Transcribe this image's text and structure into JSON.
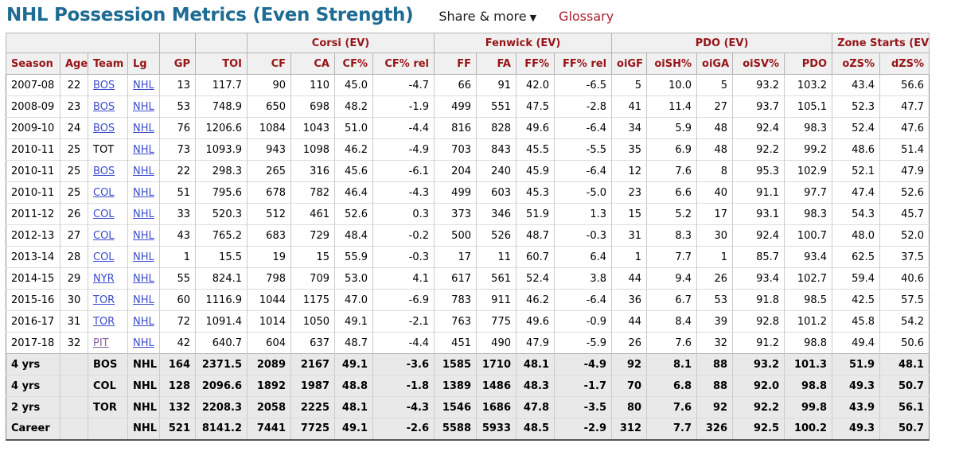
{
  "page": {
    "title": "NHL Possession Metrics (Even Strength)",
    "share_label": "Share & more",
    "share_caret": "▼",
    "glossary_label": "Glossary"
  },
  "colors": {
    "title": "#1e6b93",
    "header_text": "#971417",
    "glossary": "#ab1f2b",
    "link": "#3b4ccc",
    "link_visited": "#8a62a8",
    "header_bg": "#f0f0f0",
    "summary_bg": "#e9e9e9"
  },
  "table": {
    "group_headers": [
      {
        "label": "",
        "span": 4
      },
      {
        "label": "",
        "span": 1
      },
      {
        "label": "",
        "span": 1
      },
      {
        "label": "Corsi (EV)",
        "span": 4
      },
      {
        "label": "Fenwick (EV)",
        "span": 4
      },
      {
        "label": "PDO (EV)",
        "span": 5
      },
      {
        "label": "Zone Starts (EV)",
        "span": 2
      }
    ],
    "columns": [
      "Season",
      "Age",
      "Team",
      "Lg",
      "GP",
      "TOI",
      "CF",
      "CA",
      "CF%",
      "CF% rel",
      "FF",
      "FA",
      "FF%",
      "FF% rel",
      "oiGF",
      "oiSH%",
      "oiGA",
      "oiSV%",
      "PDO",
      "oZS%",
      "dZS%"
    ],
    "rows": [
      {
        "season": "2007-08",
        "age": "22",
        "team": "BOS",
        "team_style": "link",
        "lg": "NHL",
        "lg_style": "link",
        "summary": false,
        "stats": [
          "13",
          "117.7",
          "90",
          "110",
          "45.0",
          "-4.7",
          "66",
          "91",
          "42.0",
          "-6.5",
          "5",
          "10.0",
          "5",
          "93.2",
          "103.2",
          "43.4",
          "56.6"
        ]
      },
      {
        "season": "2008-09",
        "age": "23",
        "team": "BOS",
        "team_style": "link",
        "lg": "NHL",
        "lg_style": "link",
        "summary": false,
        "stats": [
          "53",
          "748.9",
          "650",
          "698",
          "48.2",
          "-1.9",
          "499",
          "551",
          "47.5",
          "-2.8",
          "41",
          "11.4",
          "27",
          "93.7",
          "105.1",
          "52.3",
          "47.7"
        ]
      },
      {
        "season": "2009-10",
        "age": "24",
        "team": "BOS",
        "team_style": "link",
        "lg": "NHL",
        "lg_style": "link",
        "summary": false,
        "stats": [
          "76",
          "1206.6",
          "1084",
          "1043",
          "51.0",
          "-4.4",
          "816",
          "828",
          "49.6",
          "-6.4",
          "34",
          "5.9",
          "48",
          "92.4",
          "98.3",
          "52.4",
          "47.6"
        ]
      },
      {
        "season": "2010-11",
        "age": "25",
        "team": "TOT",
        "team_style": "plain",
        "lg": "NHL",
        "lg_style": "link",
        "summary": false,
        "stats": [
          "73",
          "1093.9",
          "943",
          "1098",
          "46.2",
          "-4.9",
          "703",
          "843",
          "45.5",
          "-5.5",
          "35",
          "6.9",
          "48",
          "92.2",
          "99.2",
          "48.6",
          "51.4"
        ]
      },
      {
        "season": "2010-11",
        "age": "25",
        "team": "BOS",
        "team_style": "link",
        "lg": "NHL",
        "lg_style": "link",
        "summary": false,
        "stats": [
          "22",
          "298.3",
          "265",
          "316",
          "45.6",
          "-6.1",
          "204",
          "240",
          "45.9",
          "-6.4",
          "12",
          "7.6",
          "8",
          "95.3",
          "102.9",
          "52.1",
          "47.9"
        ]
      },
      {
        "season": "2010-11",
        "age": "25",
        "team": "COL",
        "team_style": "link",
        "lg": "NHL",
        "lg_style": "link",
        "summary": false,
        "stats": [
          "51",
          "795.6",
          "678",
          "782",
          "46.4",
          "-4.3",
          "499",
          "603",
          "45.3",
          "-5.0",
          "23",
          "6.6",
          "40",
          "91.1",
          "97.7",
          "47.4",
          "52.6"
        ]
      },
      {
        "season": "2011-12",
        "age": "26",
        "team": "COL",
        "team_style": "link",
        "lg": "NHL",
        "lg_style": "link",
        "summary": false,
        "stats": [
          "33",
          "520.3",
          "512",
          "461",
          "52.6",
          "0.3",
          "373",
          "346",
          "51.9",
          "1.3",
          "15",
          "5.2",
          "17",
          "93.1",
          "98.3",
          "54.3",
          "45.7"
        ]
      },
      {
        "season": "2012-13",
        "age": "27",
        "team": "COL",
        "team_style": "link",
        "lg": "NHL",
        "lg_style": "link",
        "summary": false,
        "stats": [
          "43",
          "765.2",
          "683",
          "729",
          "48.4",
          "-0.2",
          "500",
          "526",
          "48.7",
          "-0.3",
          "31",
          "8.3",
          "30",
          "92.4",
          "100.7",
          "48.0",
          "52.0"
        ]
      },
      {
        "season": "2013-14",
        "age": "28",
        "team": "COL",
        "team_style": "link",
        "lg": "NHL",
        "lg_style": "link",
        "summary": false,
        "stats": [
          "1",
          "15.5",
          "19",
          "15",
          "55.9",
          "-0.3",
          "17",
          "11",
          "60.7",
          "6.4",
          "1",
          "7.7",
          "1",
          "85.7",
          "93.4",
          "62.5",
          "37.5"
        ]
      },
      {
        "season": "2014-15",
        "age": "29",
        "team": "NYR",
        "team_style": "link",
        "lg": "NHL",
        "lg_style": "link",
        "summary": false,
        "stats": [
          "55",
          "824.1",
          "798",
          "709",
          "53.0",
          "4.1",
          "617",
          "561",
          "52.4",
          "3.8",
          "44",
          "9.4",
          "26",
          "93.4",
          "102.7",
          "59.4",
          "40.6"
        ]
      },
      {
        "season": "2015-16",
        "age": "30",
        "team": "TOR",
        "team_style": "link",
        "lg": "NHL",
        "lg_style": "link",
        "summary": false,
        "stats": [
          "60",
          "1116.9",
          "1044",
          "1175",
          "47.0",
          "-6.9",
          "783",
          "911",
          "46.2",
          "-6.4",
          "36",
          "6.7",
          "53",
          "91.8",
          "98.5",
          "42.5",
          "57.5"
        ]
      },
      {
        "season": "2016-17",
        "age": "31",
        "team": "TOR",
        "team_style": "link",
        "lg": "NHL",
        "lg_style": "link",
        "summary": false,
        "stats": [
          "72",
          "1091.4",
          "1014",
          "1050",
          "49.1",
          "-2.1",
          "763",
          "775",
          "49.6",
          "-0.9",
          "44",
          "8.4",
          "39",
          "92.8",
          "101.2",
          "45.8",
          "54.2"
        ]
      },
      {
        "season": "2017-18",
        "age": "32",
        "team": "PIT",
        "team_style": "visited",
        "lg": "NHL",
        "lg_style": "link",
        "summary": false,
        "stats": [
          "42",
          "640.7",
          "604",
          "637",
          "48.7",
          "-4.4",
          "451",
          "490",
          "47.9",
          "-5.9",
          "26",
          "7.6",
          "32",
          "91.2",
          "98.8",
          "49.4",
          "50.6"
        ]
      },
      {
        "season": "4 yrs",
        "age": "",
        "team": "BOS",
        "team_style": "plain",
        "lg": "NHL",
        "lg_style": "plain",
        "summary": true,
        "stats": [
          "164",
          "2371.5",
          "2089",
          "2167",
          "49.1",
          "-3.6",
          "1585",
          "1710",
          "48.1",
          "-4.9",
          "92",
          "8.1",
          "88",
          "93.2",
          "101.3",
          "51.9",
          "48.1"
        ]
      },
      {
        "season": "4 yrs",
        "age": "",
        "team": "COL",
        "team_style": "plain",
        "lg": "NHL",
        "lg_style": "plain",
        "summary": true,
        "stats": [
          "128",
          "2096.6",
          "1892",
          "1987",
          "48.8",
          "-1.8",
          "1389",
          "1486",
          "48.3",
          "-1.7",
          "70",
          "6.8",
          "88",
          "92.0",
          "98.8",
          "49.3",
          "50.7"
        ]
      },
      {
        "season": "2 yrs",
        "age": "",
        "team": "TOR",
        "team_style": "plain",
        "lg": "NHL",
        "lg_style": "plain",
        "summary": true,
        "stats": [
          "132",
          "2208.3",
          "2058",
          "2225",
          "48.1",
          "-4.3",
          "1546",
          "1686",
          "47.8",
          "-3.5",
          "80",
          "7.6",
          "92",
          "92.2",
          "99.8",
          "43.9",
          "56.1"
        ]
      },
      {
        "season": "Career",
        "age": "",
        "team": "",
        "team_style": "plain",
        "lg": "NHL",
        "lg_style": "plain",
        "summary": true,
        "stats": [
          "521",
          "8141.2",
          "7441",
          "7725",
          "49.1",
          "-2.6",
          "5588",
          "5933",
          "48.5",
          "-2.9",
          "312",
          "7.7",
          "326",
          "92.5",
          "100.2",
          "49.3",
          "50.7"
        ]
      }
    ]
  }
}
